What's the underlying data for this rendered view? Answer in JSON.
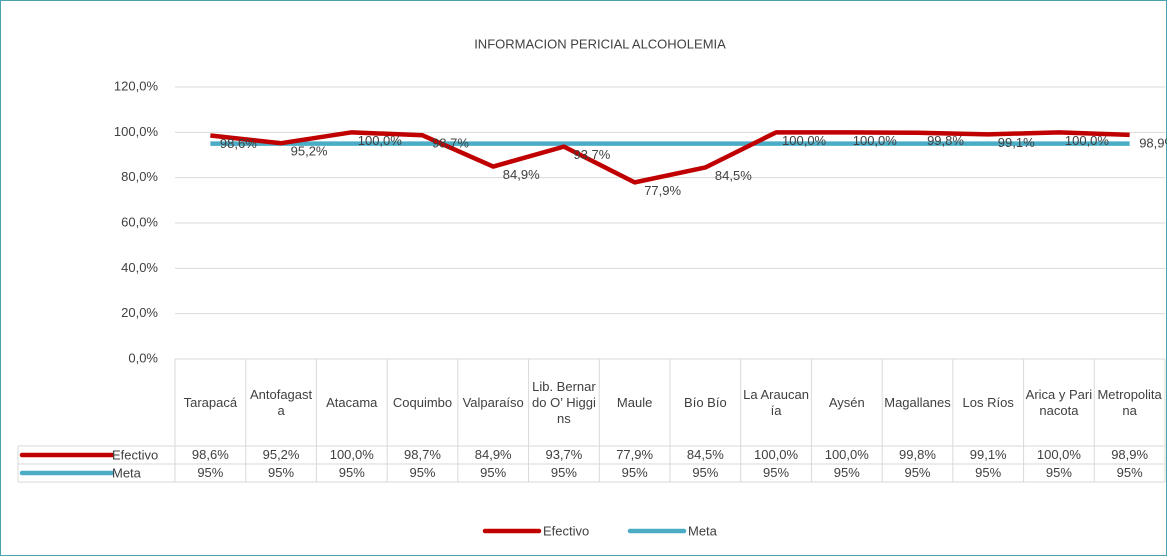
{
  "chart_data": {
    "type": "line",
    "title": "INFORMACION PERICIAL ALCOHOLEMIA",
    "categories": [
      "Tarapacá",
      "Antofagasta",
      "Atacama",
      "Coquimbo",
      "Valparaíso",
      "Lib. Bernardo O’ Higgins",
      "Maule",
      "Bío Bío",
      "La Araucanía",
      "Aysén",
      "Magallanes",
      "Los Ríos",
      "Arica y Parinacota",
      "Metropolitana"
    ],
    "series": [
      {
        "name": "Efectivo",
        "color": "#c00000",
        "values": [
          98.6,
          95.2,
          100,
          98.7,
          84.9,
          93.7,
          77.9,
          84.5,
          100,
          100,
          99.8,
          99.1,
          100,
          98.9
        ],
        "value_labels": [
          "98,6%",
          "95,2%",
          "100,0%",
          "98,7%",
          "84,9%",
          "93,7%",
          "77,9%",
          "84,5%",
          "100,0%",
          "100,0%",
          "99,8%",
          "99,1%",
          "100,0%",
          "98,9%"
        ]
      },
      {
        "name": "Meta",
        "color": "#4bacc6",
        "values": [
          95,
          95,
          95,
          95,
          95,
          95,
          95,
          95,
          95,
          95,
          95,
          95,
          95,
          95
        ],
        "value_labels": [
          "95%",
          "95%",
          "95%",
          "95%",
          "95%",
          "95%",
          "95%",
          "95%",
          "95%",
          "95%",
          "95%",
          "95%",
          "95%",
          "95%"
        ]
      }
    ],
    "ylim": [
      0,
      120
    ],
    "yticks": [
      {
        "value": 0,
        "label": "0,0%"
      },
      {
        "value": 20,
        "label": "20,0%"
      },
      {
        "value": 40,
        "label": "40,0%"
      },
      {
        "value": 60,
        "label": "60,0%"
      },
      {
        "value": 80,
        "label": "80,0%"
      },
      {
        "value": 100,
        "label": "100,0%"
      },
      {
        "value": 120,
        "label": "120,0%"
      }
    ],
    "grid": true,
    "legend": "bottom"
  }
}
